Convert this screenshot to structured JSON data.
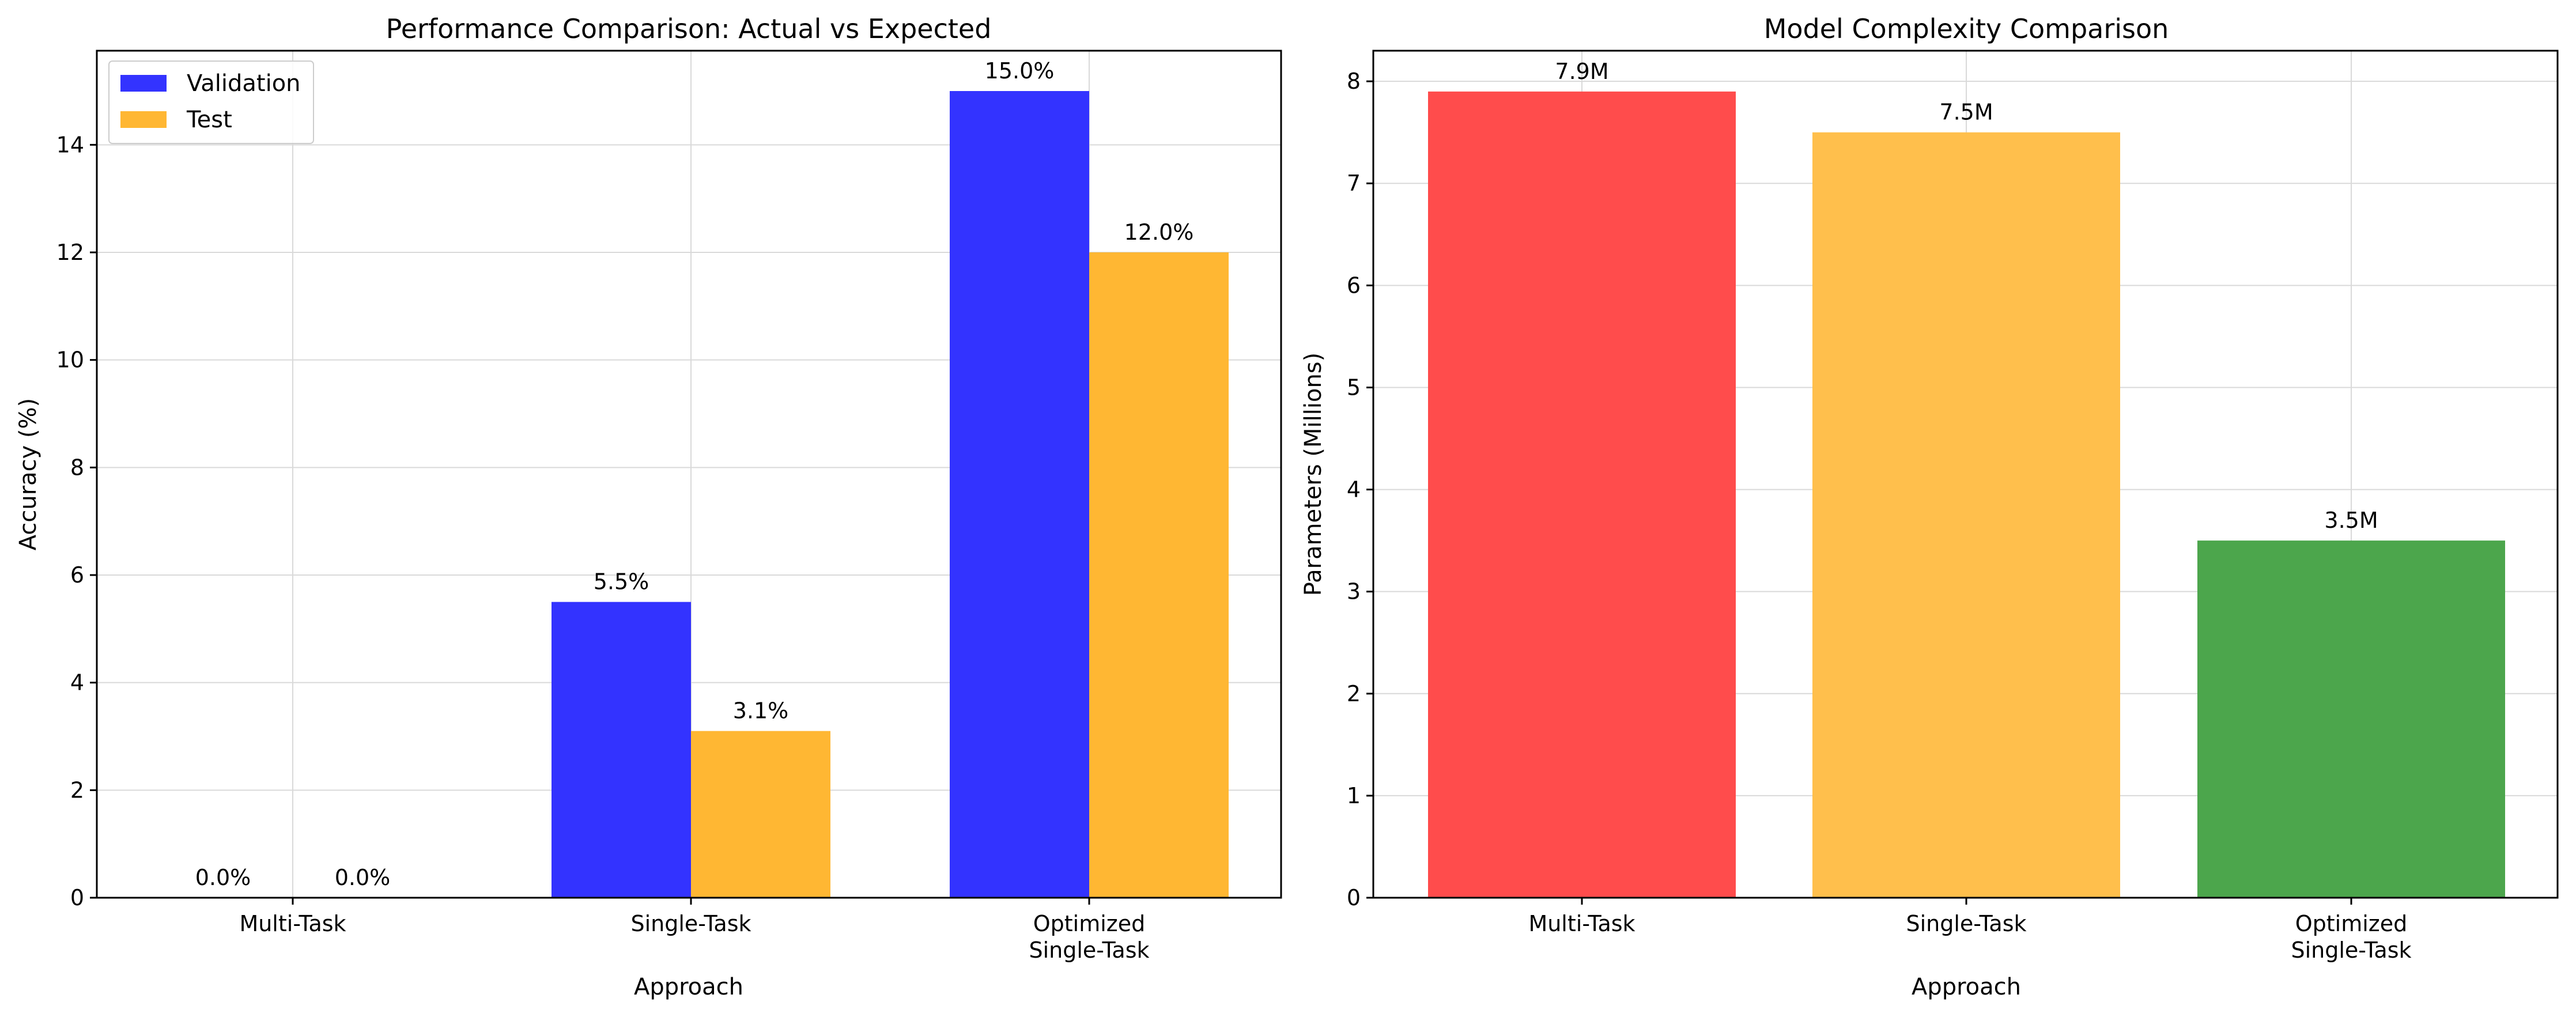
{
  "chart_data": [
    {
      "type": "bar",
      "title": "Performance Comparison: Actual vs Expected",
      "xlabel": "Approach",
      "ylabel": "Accuracy (%)",
      "categories": [
        "Multi-Task",
        "Single-Task",
        "Optimized\nSingle-Task"
      ],
      "series": [
        {
          "name": "Validation",
          "values": [
            0.0,
            5.5,
            15.0
          ],
          "labels": [
            "0.0%",
            "5.5%",
            "15.0%"
          ],
          "color": "#3333ff"
        },
        {
          "name": "Test",
          "values": [
            0.0,
            3.1,
            12.0
          ],
          "labels": [
            "0.0%",
            "3.1%",
            "12.0%"
          ],
          "color": "#ffb733"
        }
      ],
      "ylim": [
        0,
        15.75
      ],
      "yticks": [
        0,
        2,
        4,
        6,
        8,
        10,
        12,
        14
      ],
      "grid": true,
      "legend": "top-left"
    },
    {
      "type": "bar",
      "title": "Model Complexity Comparison",
      "xlabel": "Approach",
      "ylabel": "Parameters (Millions)",
      "categories": [
        "Multi-Task",
        "Single-Task",
        "Optimized\nSingle-Task"
      ],
      "values": [
        7.9,
        7.5,
        3.5
      ],
      "labels": [
        "7.9M",
        "7.5M",
        "3.5M"
      ],
      "colors": [
        "#ff4c4c",
        "#ffbf4c",
        "#4ca64c"
      ],
      "ylim": [
        0,
        8.3
      ],
      "yticks": [
        0,
        1,
        2,
        3,
        4,
        5,
        6,
        7,
        8
      ],
      "grid": true
    }
  ]
}
